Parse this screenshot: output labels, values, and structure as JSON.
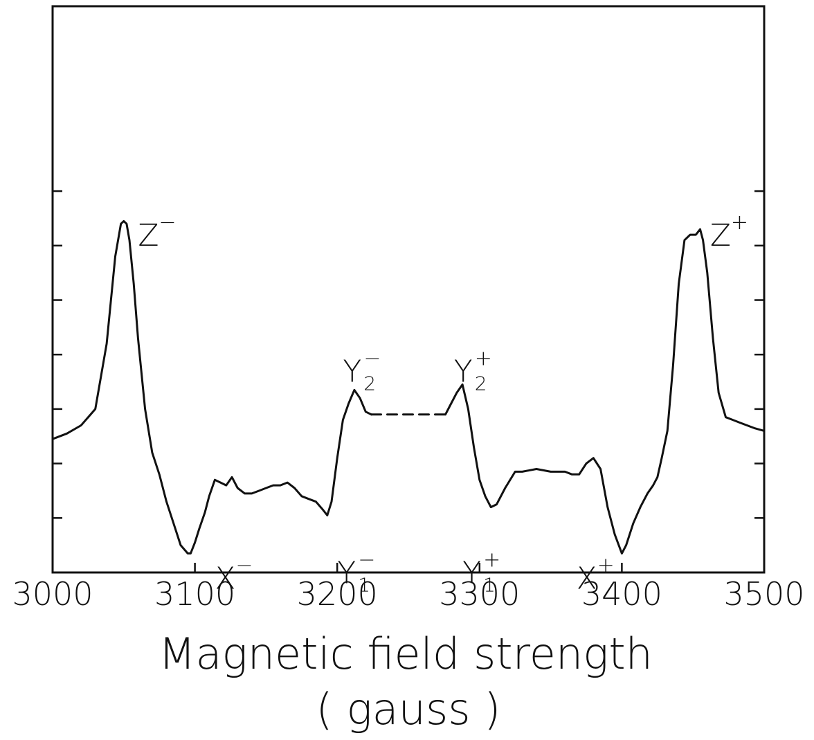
{
  "chart_data": {
    "type": "line",
    "title": "",
    "xlabel": "Magnetic field strength",
    "xlabel_unit": "( gauss )",
    "ylabel": "",
    "xlim": [
      3000,
      3500
    ],
    "ylim": [
      0,
      10
    ],
    "grid": false,
    "x_ticks": [
      3000,
      3100,
      3200,
      3300,
      3400,
      3500
    ],
    "x_tick_labels": [
      "3000",
      "3100",
      "3200",
      "3300",
      "3400",
      "3500"
    ],
    "y_ticks": [
      1,
      2,
      3,
      4,
      5,
      6,
      7
    ],
    "colors": {
      "line": "#111111",
      "axis": "#111111",
      "background": "#ffffff"
    },
    "series": [
      {
        "segments": [
          {
            "style": "solid",
            "x": [
              3000,
              3010,
              3020,
              3030,
              3038,
              3044,
              3048,
              3050,
              3052,
              3054,
              3057,
              3060,
              3065,
              3070,
              3075,
              3080,
              3085,
              3090,
              3095,
              3097,
              3100,
              3103,
              3107,
              3110,
              3114,
              3118,
              3122,
              3126,
              3130,
              3135,
              3140,
              3145,
              3150,
              3155,
              3160,
              3165,
              3170,
              3175,
              3180,
              3185,
              3190,
              3193,
              3196,
              3200,
              3204,
              3208,
              3212,
              3216,
              3220,
              3224
            ],
            "y": [
              2.45,
              2.55,
              2.7,
              3.0,
              4.2,
              5.8,
              6.4,
              6.45,
              6.4,
              6.1,
              5.3,
              4.3,
              3.0,
              2.2,
              1.8,
              1.3,
              0.9,
              0.5,
              0.35,
              0.35,
              0.55,
              0.8,
              1.1,
              1.4,
              1.7,
              1.65,
              1.6,
              1.75,
              1.55,
              1.45,
              1.45,
              1.5,
              1.55,
              1.6,
              1.6,
              1.65,
              1.55,
              1.4,
              1.35,
              1.3,
              1.15,
              1.05,
              1.3,
              2.1,
              2.8,
              3.1,
              3.35,
              3.2,
              2.95,
              2.9
            ]
          },
          {
            "style": "dashed",
            "x": [
              3224,
              3276
            ],
            "y": [
              2.9,
              2.9
            ]
          },
          {
            "style": "solid",
            "x": [
              3276,
              3280,
              3284,
              3288,
              3292,
              3296,
              3300,
              3304,
              3308,
              3312,
              3318,
              3325,
              3330,
              3340,
              3350,
              3360,
              3365,
              3370,
              3375,
              3380,
              3385,
              3390,
              3395,
              3400,
              3403,
              3408,
              3413,
              3418,
              3422,
              3425,
              3428,
              3432,
              3436,
              3440,
              3444,
              3448,
              3452,
              3455,
              3457,
              3460,
              3464,
              3468,
              3473,
              3478,
              3483,
              3488,
              3493,
              3500
            ],
            "y": [
              2.9,
              3.1,
              3.3,
              3.45,
              3.0,
              2.3,
              1.7,
              1.4,
              1.2,
              1.25,
              1.55,
              1.85,
              1.85,
              1.9,
              1.85,
              1.85,
              1.8,
              1.8,
              2.0,
              2.1,
              1.9,
              1.2,
              0.7,
              0.35,
              0.5,
              0.9,
              1.2,
              1.45,
              1.6,
              1.75,
              2.1,
              2.6,
              3.8,
              5.3,
              6.1,
              6.2,
              6.2,
              6.3,
              6.1,
              5.5,
              4.3,
              3.3,
              2.85,
              2.8,
              2.75,
              2.7,
              2.65,
              2.6
            ]
          }
        ]
      }
    ],
    "annotations": [
      {
        "base": "Z",
        "sup": "−",
        "sub": "",
        "x": 3060,
        "y": 6.0
      },
      {
        "base": "Z",
        "sup": "+",
        "sub": "",
        "x": 3462,
        "y": 6.0
      },
      {
        "base": "Y",
        "sup": "−",
        "sub": "2",
        "x": 3204,
        "y": 3.5
      },
      {
        "base": "Y",
        "sup": "+",
        "sub": "2",
        "x": 3282,
        "y": 3.5
      },
      {
        "base": "X",
        "sup": "−",
        "sub": "",
        "x": 3114,
        "y": -0.3
      },
      {
        "base": "Y",
        "sup": "−",
        "sub": "1",
        "x": 3200,
        "y": -0.2
      },
      {
        "base": "Y",
        "sup": "+",
        "sub": "1",
        "x": 3288,
        "y": -0.2
      },
      {
        "base": "X",
        "sup": "+",
        "sub": "",
        "x": 3368,
        "y": -0.3
      }
    ]
  }
}
